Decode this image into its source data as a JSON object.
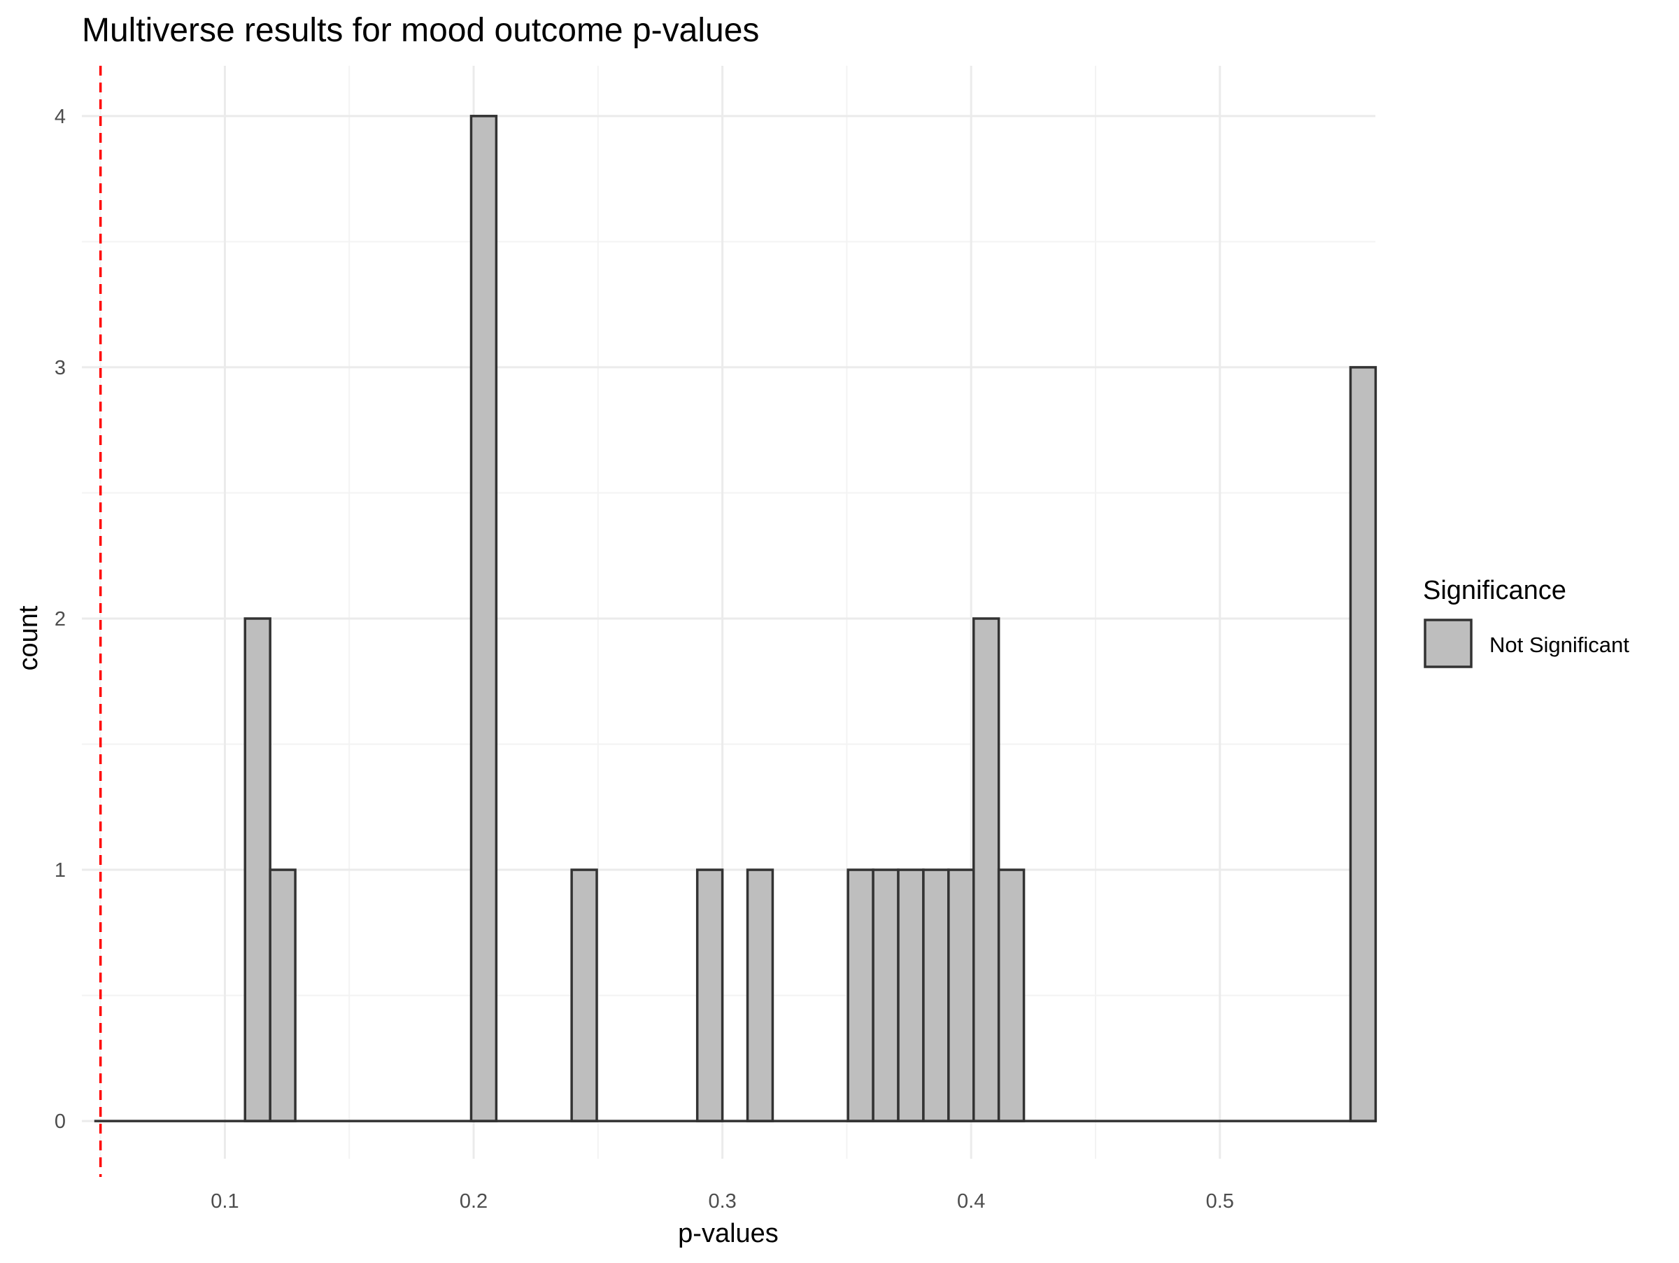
{
  "chart_data": {
    "type": "bar",
    "title": "Multiverse results for mood outcome p-values",
    "xlabel": "p-values",
    "ylabel": "count",
    "xlim": [
      0.0425,
      0.5625
    ],
    "ylim": [
      -0.15,
      4.2
    ],
    "x_ticks": [
      0.1,
      0.2,
      0.3,
      0.4,
      0.5
    ],
    "x_tick_labels": [
      "0.1",
      "0.2",
      "0.3",
      "0.4",
      "0.5"
    ],
    "y_ticks": [
      0,
      1,
      2,
      3,
      4
    ],
    "y_tick_labels": [
      "0",
      "1",
      "2",
      "3",
      "4"
    ],
    "bin_width": 0.0101,
    "bin_start": 0.0475,
    "counts": [
      0,
      0,
      0,
      0,
      0,
      0,
      2,
      1,
      0,
      0,
      0,
      0,
      0,
      0,
      0,
      4,
      0,
      0,
      0,
      1,
      0,
      0,
      0,
      0,
      1,
      0,
      1,
      0,
      0,
      0,
      1,
      1,
      1,
      1,
      1,
      2,
      1,
      0,
      0,
      0,
      0,
      0,
      0,
      0,
      0,
      0,
      0,
      0,
      0,
      0,
      3
    ],
    "threshold_line": 0.05,
    "grid": true,
    "legend": {
      "title": "Significance",
      "placement": "right",
      "entries": [
        {
          "label": "Not Significant",
          "color": "#bebebe"
        }
      ]
    },
    "colors": {
      "bar_fill": "#bebebe",
      "bar_stroke": "#333333",
      "threshold": "#ff0000",
      "grid_major": "#ebebeb",
      "grid_minor": "#f3f3f3"
    }
  }
}
